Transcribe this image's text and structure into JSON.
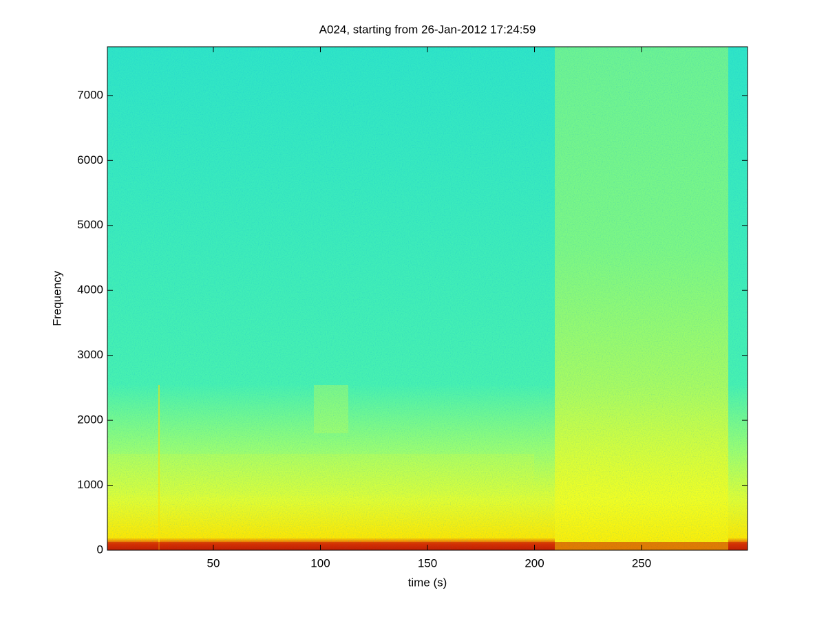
{
  "chart_data": {
    "type": "spectrogram",
    "title": "A024, starting from 26-Jan-2012 17:24:59",
    "x_label": "time (s)",
    "y_label": "Frequency",
    "xlim": [
      0.5,
      299.5
    ],
    "ylim": [
      0,
      7750
    ],
    "xticks": [
      50,
      100,
      150,
      200,
      250
    ],
    "yticks": [
      0,
      1000,
      2000,
      3000,
      4000,
      5000,
      6000,
      7000
    ]
  }
}
